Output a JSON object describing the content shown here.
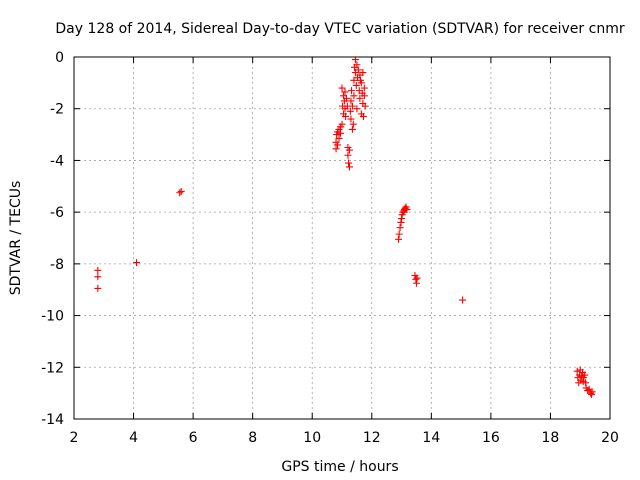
{
  "chart_data": {
    "type": "scatter",
    "title": "Day 128 of 2014, Sidereal Day-to-day VTEC variation (SDTVAR) for receiver cnmr",
    "xlabel": "GPS time / hours",
    "ylabel": "SDTVAR / TECUs",
    "xlim": [
      2,
      20
    ],
    "ylim": [
      -14,
      0
    ],
    "xticks": [
      2,
      4,
      6,
      8,
      10,
      12,
      14,
      16,
      18,
      20
    ],
    "yticks": [
      0,
      -2,
      -4,
      -6,
      -8,
      -10,
      -12,
      -14
    ],
    "xtick_labels": [
      "2",
      "4",
      "6",
      "8",
      "10",
      "12",
      "14",
      "16",
      "18",
      "20"
    ],
    "ytick_labels": [
      "0",
      "-2",
      "-4",
      "-6",
      "-8",
      "-10",
      "-12",
      "-14"
    ],
    "grid": true,
    "marker": "+",
    "color": "#ff0000",
    "series": [
      {
        "name": "SDTVAR",
        "points": [
          [
            2.8,
            -8.25
          ],
          [
            2.8,
            -8.5
          ],
          [
            2.8,
            -8.95
          ],
          [
            4.1,
            -7.95
          ],
          [
            5.55,
            -5.25
          ],
          [
            5.6,
            -5.2
          ],
          [
            10.8,
            -3.55
          ],
          [
            10.8,
            -3.3
          ],
          [
            10.82,
            -3.0
          ],
          [
            10.85,
            -2.9
          ],
          [
            10.85,
            -3.4
          ],
          [
            10.9,
            -2.8
          ],
          [
            10.9,
            -3.15
          ],
          [
            10.95,
            -2.7
          ],
          [
            10.95,
            -2.95
          ],
          [
            11.0,
            -2.6
          ],
          [
            11.0,
            -1.2
          ],
          [
            11.02,
            -1.9
          ],
          [
            11.05,
            -2.2
          ],
          [
            11.05,
            -1.5
          ],
          [
            11.08,
            -1.7
          ],
          [
            11.1,
            -2.0
          ],
          [
            11.1,
            -1.35
          ],
          [
            11.12,
            -2.3
          ],
          [
            11.15,
            -1.6
          ],
          [
            11.18,
            -1.9
          ],
          [
            11.2,
            -3.5
          ],
          [
            11.2,
            -3.8
          ],
          [
            11.22,
            -4.1
          ],
          [
            11.25,
            -4.25
          ],
          [
            11.25,
            -3.6
          ],
          [
            11.28,
            -2.1
          ],
          [
            11.3,
            -1.7
          ],
          [
            11.3,
            -2.4
          ],
          [
            11.32,
            -1.3
          ],
          [
            11.35,
            -1.9
          ],
          [
            11.35,
            -2.8
          ],
          [
            11.38,
            -2.6
          ],
          [
            11.4,
            -1.5
          ],
          [
            11.4,
            -0.9
          ],
          [
            11.42,
            -0.4
          ],
          [
            11.45,
            -0.1
          ],
          [
            11.45,
            -0.6
          ],
          [
            11.48,
            -1.1
          ],
          [
            11.5,
            -0.3
          ],
          [
            11.5,
            -2.0
          ],
          [
            11.52,
            -0.8
          ],
          [
            11.55,
            -0.5
          ],
          [
            11.58,
            -1.3
          ],
          [
            11.6,
            -0.7
          ],
          [
            11.6,
            -1.6
          ],
          [
            11.62,
            -0.9
          ],
          [
            11.65,
            -1.0
          ],
          [
            11.65,
            -2.2
          ],
          [
            11.68,
            -1.4
          ],
          [
            11.7,
            -0.6
          ],
          [
            11.7,
            -1.8
          ],
          [
            11.72,
            -2.3
          ],
          [
            11.75,
            -1.5
          ],
          [
            11.75,
            -1.2
          ],
          [
            11.78,
            -1.9
          ],
          [
            12.9,
            -7.05
          ],
          [
            12.92,
            -6.85
          ],
          [
            12.95,
            -6.6
          ],
          [
            12.98,
            -6.4
          ],
          [
            13.0,
            -6.25
          ],
          [
            13.02,
            -6.1
          ],
          [
            13.05,
            -6.0
          ],
          [
            13.08,
            -5.95
          ],
          [
            13.1,
            -5.9
          ],
          [
            13.12,
            -5.85
          ],
          [
            13.15,
            -5.8
          ],
          [
            13.18,
            -5.9
          ],
          [
            13.45,
            -8.45
          ],
          [
            13.48,
            -8.6
          ],
          [
            13.5,
            -8.75
          ],
          [
            13.52,
            -8.55
          ],
          [
            15.05,
            -9.4
          ],
          [
            18.9,
            -12.15
          ],
          [
            18.92,
            -12.4
          ],
          [
            18.95,
            -12.6
          ],
          [
            18.98,
            -12.3
          ],
          [
            19.0,
            -12.1
          ],
          [
            19.02,
            -12.5
          ],
          [
            19.05,
            -12.35
          ],
          [
            19.08,
            -12.2
          ],
          [
            19.1,
            -12.55
          ],
          [
            19.12,
            -12.4
          ],
          [
            19.15,
            -12.3
          ],
          [
            19.18,
            -12.6
          ],
          [
            19.2,
            -12.8
          ],
          [
            19.25,
            -12.9
          ],
          [
            19.3,
            -12.85
          ],
          [
            19.35,
            -13.0
          ],
          [
            19.38,
            -13.05
          ],
          [
            19.4,
            -12.95
          ]
        ]
      }
    ]
  }
}
